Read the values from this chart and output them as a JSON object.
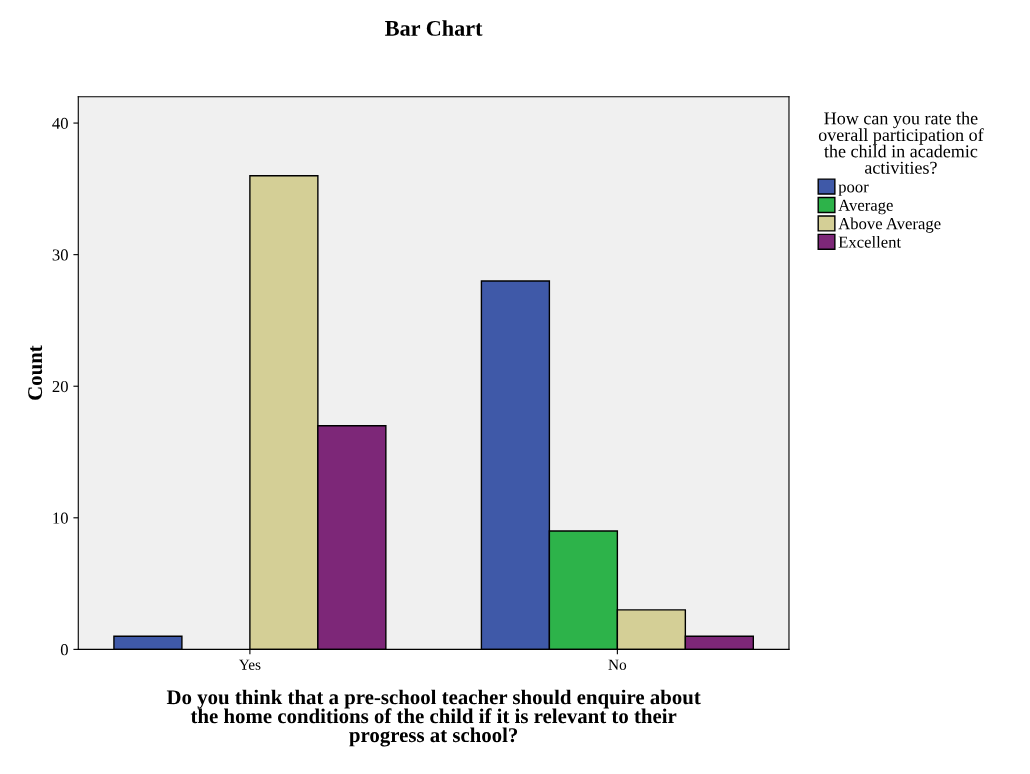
{
  "chart_data": {
    "type": "bar",
    "title": "Bar Chart",
    "xlabel": "Do you think that a pre-school teacher should enquire about\nthe home conditions of the child if it is relevant to their\nprogress at school?",
    "ylabel": "Count",
    "legend_title": "How can you rate the\noverall participation of\nthe child in academic\nactivities?",
    "categories": [
      "Yes",
      "No"
    ],
    "series": [
      {
        "name": "poor",
        "color": "#3f59a8",
        "values": [
          1,
          28
        ]
      },
      {
        "name": "Average",
        "color": "#2db34a",
        "values": [
          null,
          9
        ]
      },
      {
        "name": "Above Average",
        "color": "#d4cf96",
        "values": [
          36,
          3
        ]
      },
      {
        "name": "Excellent",
        "color": "#7d2778",
        "values": [
          17,
          1
        ]
      }
    ],
    "ylim": [
      0,
      42
    ],
    "yticks": [
      0,
      10,
      20,
      30,
      40
    ],
    "grid": false,
    "legend": "right"
  }
}
